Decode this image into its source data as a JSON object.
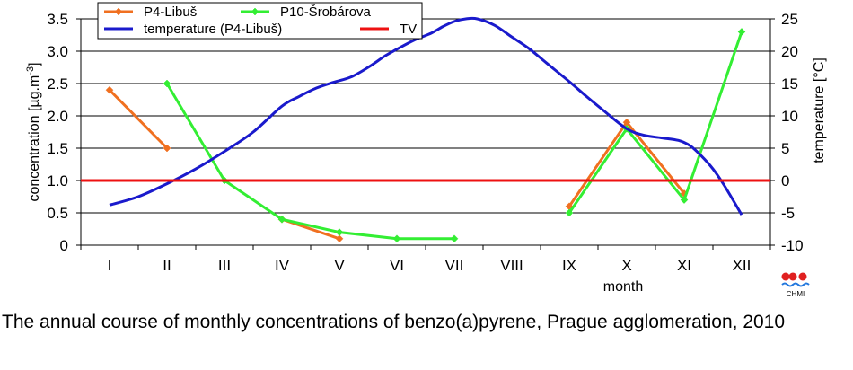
{
  "caption": "The annual course of monthly concentrations of benzo(a)pyrene, Prague agglomeration, 2010",
  "logo": {
    "icon": "chmi-logo-icon",
    "text": "CHMI"
  },
  "chart_data": {
    "type": "line",
    "xlabel": "month",
    "ylabel": "concentration [µg.m-3]",
    "ylabel_parts": [
      "concentration [µg.m",
      "-3",
      "]"
    ],
    "y2label": "temperature [°C]",
    "categories": [
      "I",
      "II",
      "III",
      "IV",
      "V",
      "VI",
      "VII",
      "VIII",
      "IX",
      "X",
      "XI",
      "XII"
    ],
    "ylim": [
      0,
      3.5
    ],
    "yticks": [
      0,
      0.5,
      1.0,
      1.5,
      2.0,
      2.5,
      3.0,
      3.5
    ],
    "ytick_labels": [
      "0",
      "0.5",
      "1.0",
      "1.5",
      "2.0",
      "2.5",
      "3.0",
      "3.5"
    ],
    "y2lim": [
      -10,
      25
    ],
    "y2ticks": [
      -10,
      -5,
      0,
      5,
      10,
      15,
      20,
      25
    ],
    "y2tick_labels": [
      "-10",
      "-5",
      "0",
      "5",
      "10",
      "15",
      "20",
      "25"
    ],
    "grid": "horizontal",
    "legend_position": "top-left",
    "series": [
      {
        "name": "P4-Libuš",
        "axis": "left",
        "color": "#f07020",
        "marker": "diamond",
        "values": [
          2.4,
          1.5,
          null,
          0.4,
          0.1,
          null,
          null,
          null,
          0.6,
          1.9,
          0.8,
          null
        ]
      },
      {
        "name": "P10-Šrobárova",
        "axis": "left",
        "color": "#33ee33",
        "marker": "diamond",
        "values": [
          null,
          2.5,
          1.0,
          0.4,
          0.2,
          0.1,
          0.1,
          null,
          0.5,
          1.8,
          0.7,
          3.3
        ]
      },
      {
        "name": "temperature (P4-Libuš)",
        "axis": "right",
        "color": "#1a1acc",
        "marker": "none",
        "smooth": true,
        "x": [
          1,
          1.5,
          2,
          2.5,
          3,
          3.5,
          4,
          4.3,
          4.6,
          4.9,
          5.2,
          5.5,
          5.8,
          6,
          6.3,
          6.6,
          6.8,
          7,
          7.2,
          7.4,
          7.7,
          8,
          8.3,
          8.6,
          9,
          9.3,
          9.6,
          10,
          10.3,
          10.6,
          10.9,
          11.1,
          11.3,
          11.5,
          11.7,
          12
        ],
        "values": [
          -3.8,
          -2.5,
          -0.5,
          1.8,
          4.5,
          7.5,
          11.5,
          13.0,
          14.3,
          15.2,
          16.0,
          17.5,
          19.3,
          20.3,
          21.7,
          22.8,
          23.8,
          24.6,
          25.0,
          25.0,
          24.0,
          22.2,
          20.4,
          18.2,
          15.3,
          13.0,
          10.8,
          8.0,
          7.0,
          6.6,
          6.2,
          5.4,
          3.8,
          1.8,
          -0.8,
          -5.3
        ]
      },
      {
        "name": "TV",
        "axis": "left",
        "color": "#ee1111",
        "marker": "none",
        "constant": 1.0
      }
    ]
  }
}
